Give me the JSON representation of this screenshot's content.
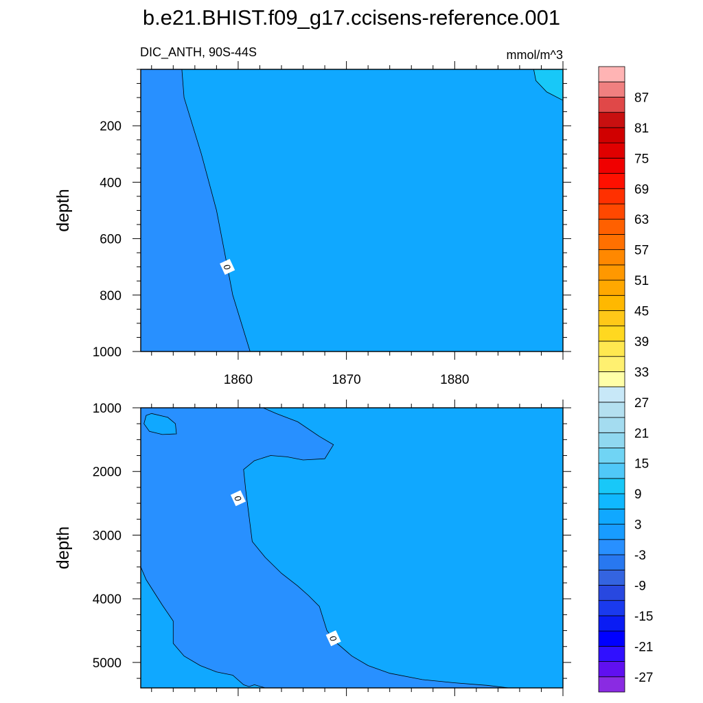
{
  "chart_data": {
    "type": "contour",
    "title": "b.e21.BHIST.f09_g17.ccisens-reference.001",
    "variable_label": "DIC_ANTH, 90S-44S",
    "units": "mmol/m^3",
    "xlim": [
      1851,
      1890
    ],
    "x_ticks": [
      1860,
      1870,
      1880
    ],
    "contour_line_label": "0",
    "panels": [
      {
        "name": "upper",
        "ylabel": "depth",
        "ylim": [
          0,
          1000
        ],
        "y_ticks": [
          200,
          400,
          600,
          800,
          1000
        ],
        "y_reversed": true,
        "background_value": 3,
        "regions": [
          {
            "value": -3,
            "boundary": [
              [
                1851,
                0
              ],
              [
                1854.8,
                0
              ],
              [
                1855,
                100
              ],
              [
                1856.6,
                300
              ],
              [
                1858,
                500
              ],
              [
                1859,
                700
              ],
              [
                1859.5,
                800
              ],
              [
                1861.1,
                1000
              ],
              [
                1851,
                1000
              ]
            ]
          },
          {
            "value": 9,
            "boundary": [
              [
                1887.3,
                0
              ],
              [
                1890,
                0
              ],
              [
                1890,
                110
              ],
              [
                1888.5,
                80
              ],
              [
                1887.5,
                40
              ]
            ]
          }
        ],
        "contour_label_points": [
          [
            1859,
            700
          ]
        ]
      },
      {
        "name": "lower",
        "ylabel": "depth",
        "ylim": [
          1000,
          5400
        ],
        "y_ticks": [
          1000,
          2000,
          3000,
          4000,
          5000
        ],
        "y_reversed": true,
        "background_value": 3,
        "regions": [
          {
            "value": -3,
            "boundary": [
              [
                1851,
                1000
              ],
              [
                1862.3,
                1000
              ],
              [
                1863.5,
                1090
              ],
              [
                1865.5,
                1220
              ],
              [
                1867.5,
                1450
              ],
              [
                1868.8,
                1580
              ],
              [
                1868,
                1800
              ],
              [
                1866,
                1820
              ],
              [
                1864.5,
                1770
              ],
              [
                1863,
                1750
              ],
              [
                1861.5,
                1830
              ],
              [
                1860.5,
                1970
              ],
              [
                1860.7,
                2300
              ],
              [
                1861,
                2700
              ],
              [
                1861.3,
                3100
              ],
              [
                1862.5,
                3350
              ],
              [
                1864,
                3600
              ],
              [
                1865.5,
                3800
              ],
              [
                1866.5,
                3950
              ],
              [
                1867.5,
                4120
              ],
              [
                1868.2,
                4500
              ],
              [
                1869,
                4680
              ],
              [
                1870.5,
                4900
              ],
              [
                1872,
                5050
              ],
              [
                1874,
                5170
              ],
              [
                1877,
                5270
              ],
              [
                1880,
                5320
              ],
              [
                1883,
                5360
              ],
              [
                1885,
                5400
              ],
              [
                1851,
                5400
              ]
            ]
          },
          {
            "value": 3,
            "boundary": [
              [
                1851,
                3500
              ],
              [
                1851.5,
                3700
              ],
              [
                1853,
                4100
              ],
              [
                1854,
                4350
              ],
              [
                1854,
                4700
              ],
              [
                1855,
                4900
              ],
              [
                1856.5,
                5050
              ],
              [
                1858,
                5150
              ],
              [
                1859.5,
                5200
              ],
              [
                1860.5,
                5350
              ],
              [
                1861,
                5380
              ],
              [
                1861.5,
                5350
              ],
              [
                1862.5,
                5400
              ],
              [
                1851,
                5400
              ]
            ]
          },
          {
            "value": 3,
            "boundary": [
              [
                1851.5,
                1120
              ],
              [
                1852,
                1090
              ],
              [
                1853.5,
                1150
              ],
              [
                1854.2,
                1250
              ],
              [
                1854.3,
                1410
              ],
              [
                1853,
                1420
              ],
              [
                1851.8,
                1370
              ],
              [
                1851.3,
                1250
              ]
            ]
          }
        ],
        "contour_label_points": [
          [
            1860,
            2420
          ],
          [
            1868.8,
            4620
          ]
        ]
      }
    ],
    "colorbar": {
      "levels": [
        -30,
        -27,
        -24,
        -21,
        -18,
        -15,
        -12,
        -9,
        -6,
        -3,
        0,
        3,
        6,
        9,
        12,
        15,
        18,
        21,
        24,
        27,
        30,
        33,
        36,
        39,
        42,
        45,
        48,
        51,
        54,
        57,
        60,
        63,
        66,
        69,
        72,
        75,
        78,
        81,
        84,
        87,
        90
      ],
      "label_every": 2,
      "colors": [
        "#8a2be2",
        "#6010f0",
        "#3010ff",
        "#0000ff",
        "#0a1cf4",
        "#1a3aee",
        "#2848e0",
        "#3464e0",
        "#2878f0",
        "#2890ff",
        "#189cff",
        "#10a8ff",
        "#10b8ff",
        "#18c8f8",
        "#50c8f8",
        "#70d4f4",
        "#90d8f0",
        "#a4dcf0",
        "#b4e0f0",
        "#c8e8f8",
        "#ffffa8",
        "#fff070",
        "#ffe850",
        "#ffd820",
        "#ffc818",
        "#ffb800",
        "#ffa800",
        "#ff9800",
        "#ff8800",
        "#ff7000",
        "#ff6000",
        "#ff4800",
        "#ff3000",
        "#ff1000",
        "#f00000",
        "#e00000",
        "#d00000",
        "#c81010",
        "#e04848",
        "#f08080",
        "#ffb4b4"
      ]
    }
  }
}
